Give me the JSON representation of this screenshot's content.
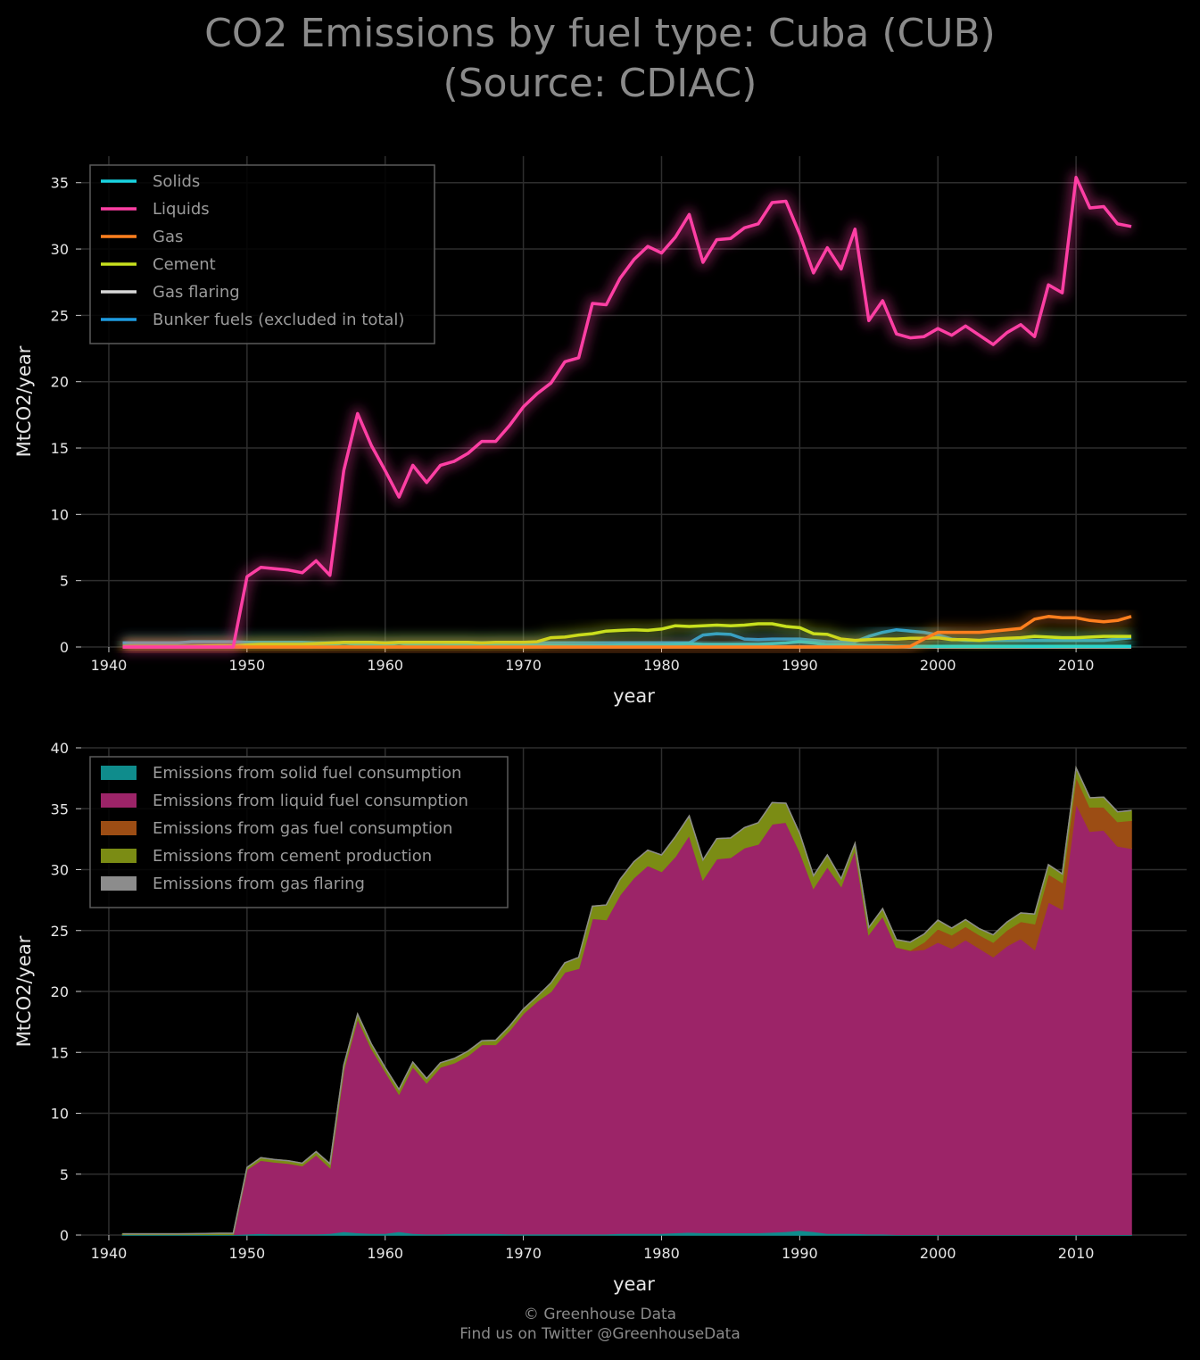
{
  "title": {
    "line1": "CO2 Emissions by fuel type: Cuba (CUB)",
    "line2": "(Source: CDIAC)"
  },
  "footer": {
    "line1": "© Greenhouse Data",
    "line2": "Find us on Twitter @GreenhouseData"
  },
  "chart_data": [
    {
      "type": "line",
      "xlabel": "year",
      "ylabel": "MtCO2/year",
      "xlim": [
        1938,
        2018
      ],
      "ylim": [
        0,
        37
      ],
      "xticks": [
        1940,
        1950,
        1960,
        1970,
        1980,
        1990,
        2000,
        2010
      ],
      "yticks": [
        0,
        5,
        10,
        15,
        20,
        25,
        30,
        35
      ],
      "grid": true,
      "legend_position": "top-left",
      "x": [
        1941,
        1942,
        1943,
        1944,
        1945,
        1946,
        1947,
        1948,
        1949,
        1950,
        1951,
        1952,
        1953,
        1954,
        1955,
        1956,
        1957,
        1958,
        1959,
        1960,
        1961,
        1962,
        1963,
        1964,
        1965,
        1966,
        1967,
        1968,
        1969,
        1970,
        1971,
        1972,
        1973,
        1974,
        1975,
        1976,
        1977,
        1978,
        1979,
        1980,
        1981,
        1982,
        1983,
        1984,
        1985,
        1986,
        1987,
        1988,
        1989,
        1990,
        1991,
        1992,
        1993,
        1994,
        1995,
        1996,
        1997,
        1998,
        1999,
        2000,
        2001,
        2002,
        2003,
        2004,
        2005,
        2006,
        2007,
        2008,
        2009,
        2010,
        2011,
        2012,
        2013,
        2014
      ],
      "series": [
        {
          "name": "Solids",
          "color": "#19d3e0",
          "values": [
            0.05,
            0.05,
            0.05,
            0.05,
            0.05,
            0.05,
            0.05,
            0.05,
            0.05,
            0.1,
            0.15,
            0.1,
            0.1,
            0.1,
            0.1,
            0.15,
            0.3,
            0.2,
            0.15,
            0.15,
            0.3,
            0.15,
            0.1,
            0.1,
            0.15,
            0.15,
            0.15,
            0.15,
            0.1,
            0.1,
            0.1,
            0.1,
            0.1,
            0.1,
            0.1,
            0.1,
            0.15,
            0.15,
            0.15,
            0.15,
            0.2,
            0.25,
            0.2,
            0.2,
            0.2,
            0.2,
            0.2,
            0.25,
            0.3,
            0.4,
            0.3,
            0.15,
            0.15,
            0.15,
            0.1,
            0.1,
            0.05,
            0.05,
            0.05,
            0.05,
            0.05,
            0.05,
            0.05,
            0.05,
            0.05,
            0.05,
            0.05,
            0.05,
            0.05,
            0.05,
            0.05,
            0.05,
            0.05,
            0.05
          ]
        },
        {
          "name": "Liquids",
          "color": "#ff3fa4",
          "values": [
            0,
            0,
            0,
            0,
            0,
            0,
            0,
            0,
            0,
            5.3,
            6.0,
            5.9,
            5.8,
            5.6,
            6.5,
            5.4,
            13.3,
            17.6,
            15.2,
            13.3,
            11.3,
            13.7,
            12.4,
            13.7,
            14.0,
            14.6,
            15.5,
            15.5,
            16.7,
            18.1,
            19.1,
            19.9,
            21.5,
            21.8,
            25.9,
            25.8,
            27.8,
            29.2,
            30.2,
            29.7,
            30.9,
            32.6,
            29.0,
            30.7,
            30.8,
            31.6,
            31.9,
            33.5,
            33.6,
            31.1,
            28.2,
            30.1,
            28.5,
            31.5,
            24.6,
            26.1,
            23.6,
            23.3,
            23.4,
            24.0,
            23.5,
            24.2,
            23.5,
            22.8,
            23.7,
            24.3,
            23.4,
            27.3,
            26.7,
            35.4,
            33.1,
            33.2,
            31.9,
            31.7
          ]
        },
        {
          "name": "Gas",
          "color": "#ff7f1e",
          "values": [
            0,
            0,
            0,
            0,
            0,
            0,
            0,
            0,
            0,
            0,
            0,
            0,
            0,
            0,
            0,
            0,
            0,
            0,
            0,
            0,
            0,
            0,
            0,
            0,
            0,
            0,
            0,
            0,
            0,
            0,
            0,
            0,
            0,
            0,
            0,
            0,
            0,
            0,
            0,
            0,
            0,
            0,
            0,
            0,
            0,
            0,
            0,
            0,
            0,
            0,
            0,
            0,
            0,
            0,
            0,
            0,
            0,
            0.05,
            0.6,
            1.1,
            1.1,
            1.1,
            1.1,
            1.2,
            1.3,
            1.4,
            2.1,
            2.3,
            2.2,
            2.2,
            2.0,
            1.9,
            2.0,
            2.3
          ]
        },
        {
          "name": "Cement",
          "color": "#c8e01e",
          "values": [
            0.05,
            0.05,
            0.05,
            0.05,
            0.05,
            0.06,
            0.08,
            0.1,
            0.1,
            0.15,
            0.2,
            0.2,
            0.2,
            0.2,
            0.25,
            0.3,
            0.35,
            0.35,
            0.35,
            0.3,
            0.35,
            0.35,
            0.35,
            0.35,
            0.35,
            0.35,
            0.3,
            0.35,
            0.35,
            0.35,
            0.4,
            0.7,
            0.75,
            0.9,
            1.0,
            1.2,
            1.25,
            1.3,
            1.25,
            1.35,
            1.6,
            1.55,
            1.6,
            1.65,
            1.6,
            1.65,
            1.75,
            1.75,
            1.55,
            1.45,
            1.0,
            0.95,
            0.6,
            0.5,
            0.55,
            0.6,
            0.6,
            0.65,
            0.65,
            0.7,
            0.55,
            0.55,
            0.5,
            0.6,
            0.65,
            0.7,
            0.8,
            0.75,
            0.7,
            0.7,
            0.75,
            0.8,
            0.8,
            0.8
          ]
        },
        {
          "name": "Gas flaring",
          "color": "#d9d9d9",
          "values": [
            0,
            0,
            0,
            0,
            0,
            0,
            0,
            0,
            0,
            0,
            0,
            0,
            0,
            0,
            0,
            0,
            0,
            0,
            0,
            0,
            0,
            0,
            0,
            0,
            0,
            0,
            0,
            0,
            0,
            0,
            0,
            0,
            0,
            0,
            0,
            0,
            0,
            0,
            0,
            0,
            0,
            0,
            0,
            0,
            0,
            0,
            0,
            0,
            0,
            0,
            0,
            0,
            0,
            0,
            0,
            0,
            0,
            0,
            0,
            0,
            0,
            0,
            0,
            0,
            0,
            0,
            0,
            0,
            0,
            0,
            0,
            0,
            0,
            0
          ]
        },
        {
          "name": "Bunker fuels (excluded in total)",
          "color": "#1e9be0",
          "values": [
            0.3,
            0.3,
            0.3,
            0.3,
            0.3,
            0.4,
            0.4,
            0.4,
            0.4,
            0.35,
            0.35,
            0.35,
            0.35,
            0.35,
            0.3,
            0.3,
            0.3,
            0.3,
            0.3,
            0.3,
            0.3,
            0.3,
            0.3,
            0.3,
            0.3,
            0.3,
            0.3,
            0.3,
            0.3,
            0.3,
            0.3,
            0.3,
            0.3,
            0.3,
            0.3,
            0.3,
            0.3,
            0.3,
            0.3,
            0.3,
            0.3,
            0.3,
            0.9,
            1.0,
            0.95,
            0.6,
            0.55,
            0.6,
            0.6,
            0.6,
            0.5,
            0.4,
            0.4,
            0.4,
            0.8,
            1.1,
            1.3,
            1.2,
            1.1,
            0.9,
            0.6,
            0.5,
            0.5,
            0.5,
            0.5,
            0.5,
            0.5,
            0.5,
            0.5,
            0.5,
            0.5,
            0.5,
            0.6,
            0.7
          ]
        }
      ]
    },
    {
      "type": "area",
      "stacked": true,
      "xlabel": "year",
      "ylabel": "MtCO2/year",
      "xlim": [
        1938,
        2018
      ],
      "ylim": [
        0,
        40
      ],
      "xticks": [
        1940,
        1950,
        1960,
        1970,
        1980,
        1990,
        2000,
        2010
      ],
      "yticks": [
        0,
        5,
        10,
        15,
        20,
        25,
        30,
        35,
        40
      ],
      "grid": true,
      "legend_position": "top-left",
      "series": [
        {
          "name": "Emissions from solid fuel consumption",
          "color": "#0f8c8c",
          "ref": "Solids"
        },
        {
          "name": "Emissions from liquid fuel consumption",
          "color": "#9c2468",
          "ref": "Liquids"
        },
        {
          "name": "Emissions from gas fuel consumption",
          "color": "#9c4d14",
          "ref": "Gas"
        },
        {
          "name": "Emissions from cement production",
          "color": "#7b8c14",
          "ref": "Cement"
        },
        {
          "name": "Emissions from gas flaring",
          "color": "#8c8c8c",
          "ref": "Gas flaring"
        }
      ]
    }
  ]
}
